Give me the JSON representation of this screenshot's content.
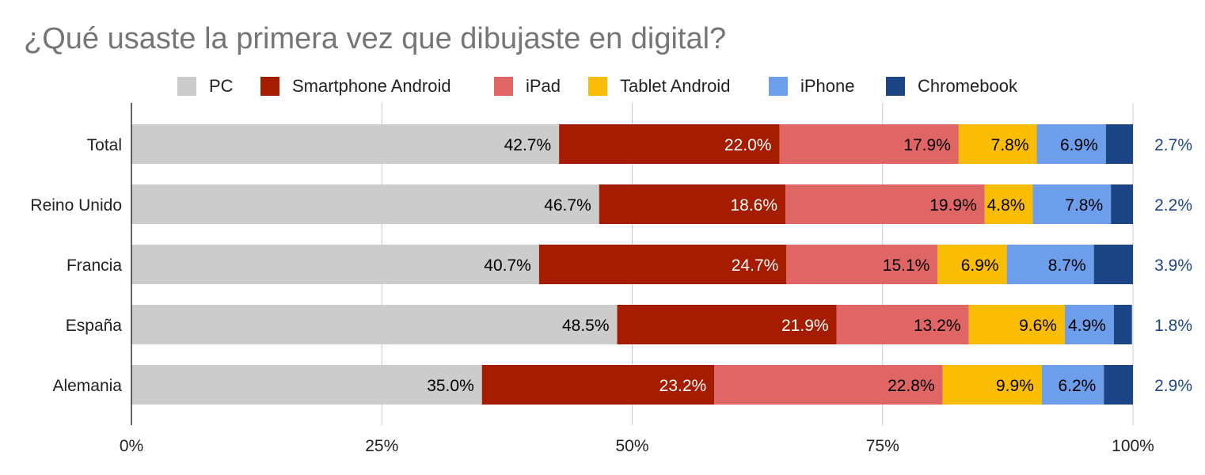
{
  "chart_data": {
    "type": "bar",
    "orientation": "horizontal",
    "stacked": true,
    "normalized": true,
    "title": "¿Qué usaste la primera vez que dibujaste en digital?",
    "categories": [
      "Total",
      "Reino Unido",
      "Francia",
      "España",
      "Alemania"
    ],
    "series": [
      {
        "name": "PC",
        "color": "#cccccc",
        "label_color": "#000000",
        "values": [
          42.7,
          46.7,
          40.7,
          48.5,
          35.0
        ]
      },
      {
        "name": "Smartphone Android",
        "color": "#a61c00",
        "label_color": "#ffffff",
        "values": [
          22.0,
          18.6,
          24.7,
          21.9,
          23.2
        ]
      },
      {
        "name": "iPad",
        "color": "#e06666",
        "label_color": "#000000",
        "values": [
          17.9,
          19.9,
          15.1,
          13.2,
          22.8
        ]
      },
      {
        "name": "Tablet Android",
        "color": "#fbbc04",
        "label_color": "#000000",
        "values": [
          7.8,
          4.8,
          6.9,
          9.6,
          9.9
        ]
      },
      {
        "name": "iPhone",
        "color": "#6d9eeb",
        "label_color": "#000000",
        "values": [
          6.9,
          7.8,
          8.7,
          4.9,
          6.2
        ]
      },
      {
        "name": "Chromebook",
        "color": "#1c4587",
        "label_color": "#1c4587",
        "values": [
          2.7,
          2.2,
          3.9,
          1.8,
          2.9
        ]
      }
    ],
    "value_labels": {
      "Total": [
        "42.7%",
        "22.0%",
        "17.9%",
        "7.8%",
        "6.9%",
        "2.7%"
      ],
      "Reino Unido": [
        "46.7%",
        "18.6%",
        "19.9%",
        "4.8%",
        "7.8%",
        "2.2%"
      ],
      "Francia": [
        "40.7%",
        "24.7%",
        "15.1%",
        "6.9%",
        "8.7%",
        "3.9%"
      ],
      "España": [
        "48.5%",
        "21.9%",
        "13.2%",
        "9.6%",
        "4.9%",
        "1.8%"
      ],
      "Alemania": [
        "35.0%",
        "23.2%",
        "22.8%",
        "9.9%",
        "6.2%",
        "2.9%"
      ]
    },
    "xlim": [
      0,
      100
    ],
    "x_ticks": [
      "0%",
      "25%",
      "50%",
      "75%",
      "100%"
    ],
    "grid": true,
    "legend_position": "top"
  }
}
